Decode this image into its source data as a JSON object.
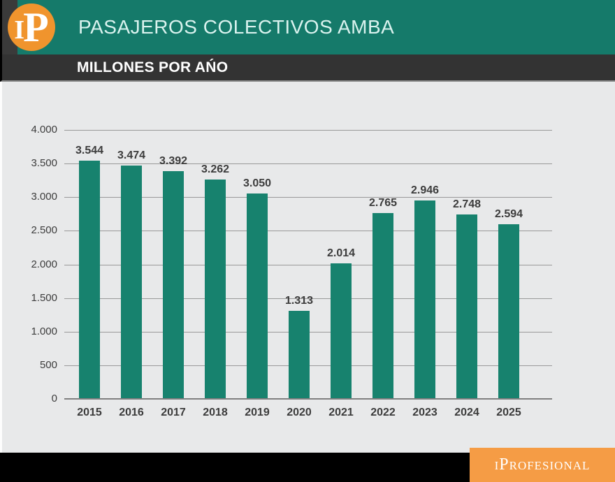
{
  "header": {
    "logo_i": "I",
    "logo_p": "P",
    "title": "PASAJEROS COLECTIVOS AMBA",
    "subtitle": "MILLONES POR AŃO"
  },
  "footer": {
    "brand": "iProfesional"
  },
  "colors": {
    "header_teal": "#157a6a",
    "bar_teal": "#17826e",
    "dark_gray": "#3a3a3a",
    "body_bg": "#e8e9ea",
    "logo_orange": "#f0942d",
    "footer_orange": "#f59c45",
    "label_dark": "#3c3c3c"
  },
  "chart_data": {
    "type": "bar",
    "title": "PASAJEROS COLECTIVOS AMBA",
    "subtitle": "MILLONES POR AŃO",
    "xlabel": "",
    "ylabel": "",
    "categories": [
      "2015",
      "2016",
      "2017",
      "2018",
      "2019",
      "2020",
      "2021",
      "2022",
      "2023",
      "2024",
      "2025"
    ],
    "values": [
      3544,
      3474,
      3392,
      3262,
      3050,
      1313,
      2014,
      2765,
      2946,
      2748,
      2594
    ],
    "value_labels": [
      "3.544",
      "3.474",
      "3.392",
      "3.262",
      "3.050",
      "1.313",
      "2.014",
      "2.765",
      "2.946",
      "2.748",
      "2.594"
    ],
    "ylim": [
      0,
      4000
    ],
    "ytick_interval": 500,
    "ytick_labels": [
      "0",
      "500",
      "1.000",
      "1.500",
      "2.000",
      "2.500",
      "3.000",
      "3.500",
      "4.000"
    ],
    "grid": true,
    "legend": false,
    "bar_color": "#17826e"
  }
}
